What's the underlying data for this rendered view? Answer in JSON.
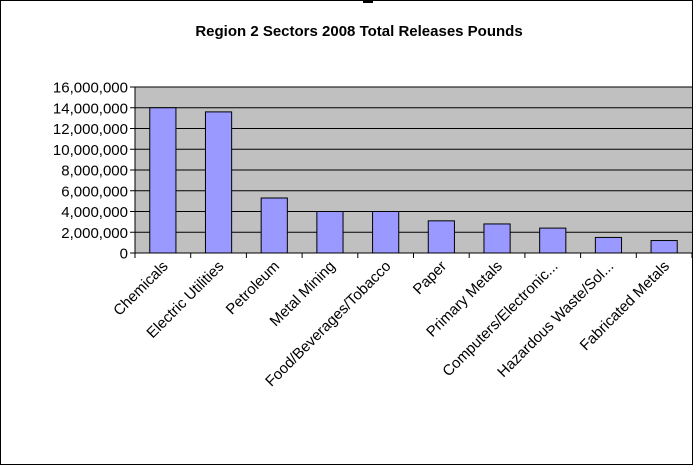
{
  "chart_data": {
    "type": "bar",
    "title": "Region 2 Sectors 2008 Total Releases Pounds",
    "categories": [
      "Chemicals",
      "Electric Utilities",
      "Petroleum",
      "Metal Mining",
      "Food/Beverages/Tobacco",
      "Paper",
      "Primary Metals",
      "Computers/Electronic...",
      "Hazardous Waste/Sol...",
      "Fabricated Metals"
    ],
    "values": [
      14000000,
      13600000,
      5300000,
      4000000,
      4000000,
      3100000,
      2800000,
      2400000,
      1500000,
      1200000
    ],
    "ylim": [
      0,
      16000000
    ],
    "yticks": [
      0,
      2000000,
      4000000,
      6000000,
      8000000,
      10000000,
      12000000,
      14000000,
      16000000
    ],
    "ytick_labels": [
      "0",
      "2,000,000",
      "4,000,000",
      "6,000,000",
      "8,000,000",
      "10,000,000",
      "12,000,000",
      "14,000,000",
      "16,000,000"
    ],
    "grid": true,
    "legend": "none",
    "colors": {
      "bar_fill": "#9999ff",
      "bar_stroke": "#000000",
      "plot_background": "#c0c0c0",
      "grid": "#000000"
    }
  }
}
